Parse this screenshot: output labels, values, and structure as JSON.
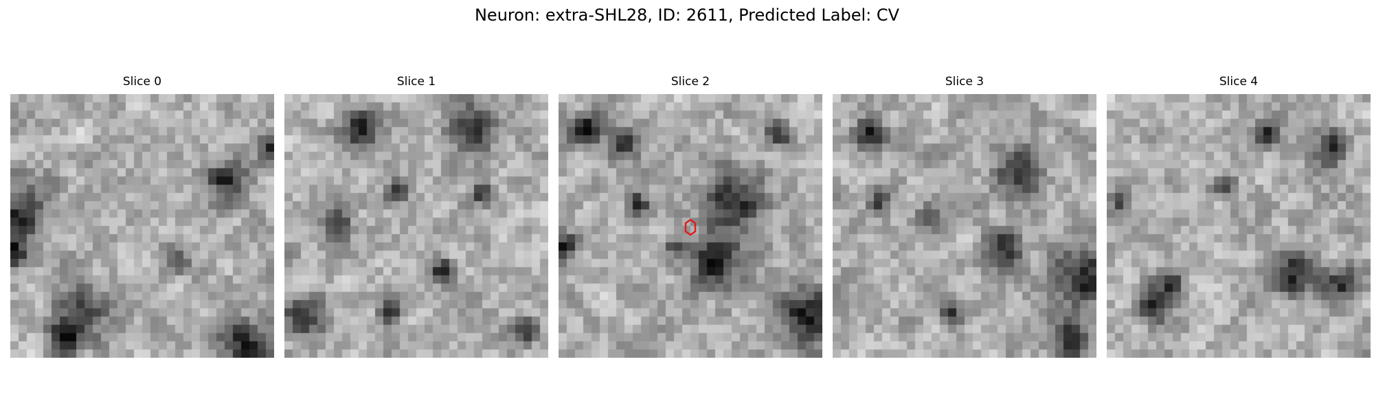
{
  "figure": {
    "title": "Neuron: extra-SHL28, ID: 2611, Predicted Label: CV"
  },
  "colormap": "gray",
  "marker": {
    "shape": "hexagon",
    "color": "#e31a1c",
    "slice_index": 2
  },
  "slices": [
    {
      "label": "Slice 0",
      "dark_spots": [
        [
          0.82,
          0.33,
          0.09
        ],
        [
          0.03,
          0.45,
          0.13
        ],
        [
          0.98,
          0.2,
          0.06
        ],
        [
          0.27,
          0.83,
          0.11
        ],
        [
          0.2,
          0.93,
          0.07
        ],
        [
          0.88,
          0.96,
          0.11
        ],
        [
          0.63,
          0.63,
          0.05
        ],
        [
          0.01,
          0.6,
          0.07
        ]
      ]
    },
    {
      "label": "Slice 1",
      "dark_spots": [
        [
          0.71,
          0.13,
          0.1
        ],
        [
          0.29,
          0.14,
          0.09
        ],
        [
          0.2,
          0.5,
          0.06
        ],
        [
          0.43,
          0.37,
          0.05
        ],
        [
          0.6,
          0.67,
          0.05
        ],
        [
          0.4,
          0.82,
          0.05
        ],
        [
          0.75,
          0.38,
          0.05
        ],
        [
          0.08,
          0.84,
          0.09
        ],
        [
          0.9,
          0.9,
          0.06
        ]
      ]
    },
    {
      "label": "Slice 2",
      "dark_spots": [
        [
          0.67,
          0.4,
          0.14
        ],
        [
          0.6,
          0.63,
          0.12
        ],
        [
          0.94,
          0.85,
          0.14
        ],
        [
          0.25,
          0.19,
          0.07
        ],
        [
          0.1,
          0.13,
          0.07
        ],
        [
          0.83,
          0.15,
          0.06
        ],
        [
          0.02,
          0.58,
          0.06
        ],
        [
          0.3,
          0.42,
          0.05
        ],
        [
          0.44,
          0.58,
          0.04
        ]
      ]
    },
    {
      "label": "Slice 3",
      "dark_spots": [
        [
          0.7,
          0.3,
          0.1
        ],
        [
          0.65,
          0.58,
          0.08
        ],
        [
          0.95,
          0.7,
          0.14
        ],
        [
          0.14,
          0.15,
          0.06
        ],
        [
          0.9,
          0.93,
          0.08
        ],
        [
          0.37,
          0.47,
          0.06
        ],
        [
          0.45,
          0.82,
          0.05
        ],
        [
          0.18,
          0.4,
          0.05
        ]
      ]
    },
    {
      "label": "Slice 4",
      "dark_spots": [
        [
          0.85,
          0.2,
          0.08
        ],
        [
          0.72,
          0.68,
          0.1
        ],
        [
          0.18,
          0.8,
          0.08
        ],
        [
          0.9,
          0.72,
          0.08
        ],
        [
          0.25,
          0.72,
          0.05
        ],
        [
          0.45,
          0.35,
          0.05
        ],
        [
          0.6,
          0.15,
          0.05
        ],
        [
          0.05,
          0.4,
          0.05
        ]
      ]
    }
  ]
}
